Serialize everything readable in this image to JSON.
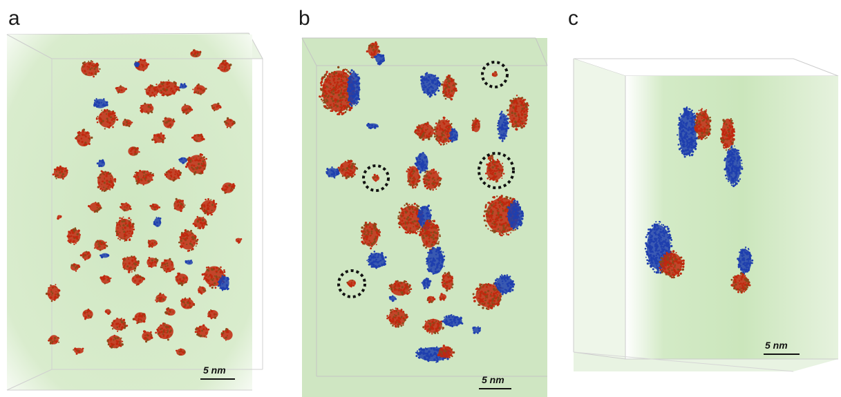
{
  "figure": {
    "panels": [
      {
        "letter": "a",
        "scale_bar": "5 nm"
      },
      {
        "letter": "b",
        "scale_bar": "5 nm"
      },
      {
        "letter": "c",
        "scale_bar": "5 nm"
      }
    ],
    "colors": {
      "red_phase": "#c0280e",
      "blue_phase": "#1f3fae",
      "volume_green": "#bfe0b0",
      "box_edges": "#c8c8c8",
      "highlight_circle": "#111111"
    }
  }
}
